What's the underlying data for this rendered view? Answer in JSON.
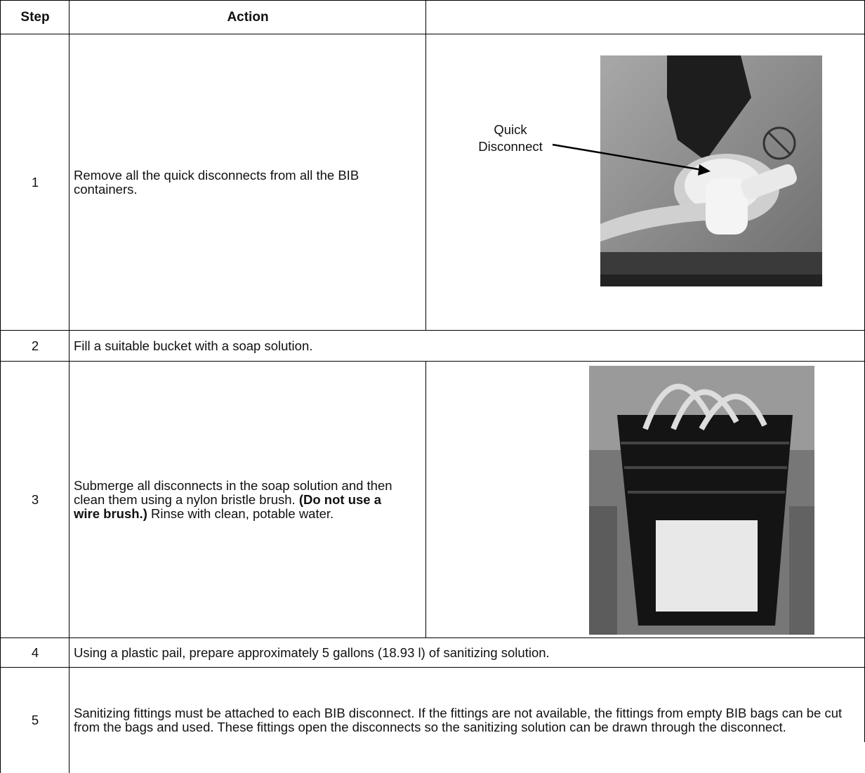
{
  "table": {
    "headers": [
      "Step",
      "Action"
    ],
    "rows": [
      {
        "step": 1,
        "action": [
          {
            "text": "Remove all the quick disconnects from all the BIB containers."
          }
        ],
        "image": {
          "callout": "Quick Disconnect"
        }
      },
      {
        "step": 2,
        "action": [
          {
            "text": "Fill a suitable bucket with a soap solution."
          }
        ]
      },
      {
        "step": 3,
        "action": [
          {
            "text": "Submerge all disconnects in the soap solution and then clean them using a nylon bristle brush. "
          },
          {
            "text": "(Do not use a wire brush.)",
            "bold": true
          },
          {
            "text": " Rinse with clean, potable water."
          }
        ],
        "image": {}
      },
      {
        "step": 4,
        "action": [
          {
            "text": "Using a plastic pail, prepare approximately 5 gallons (18.93 l) of sanitizing solution."
          }
        ]
      },
      {
        "step": 5,
        "action": [
          {
            "text": "Sanitizing fittings must be attached to each BIB disconnect. If the fittings are not available, the fittings from empty BIB bags can be cut from the bags and used. These fittings open the disconnects so the sanitizing solution can be drawn through the disconnect."
          }
        ]
      }
    ]
  }
}
